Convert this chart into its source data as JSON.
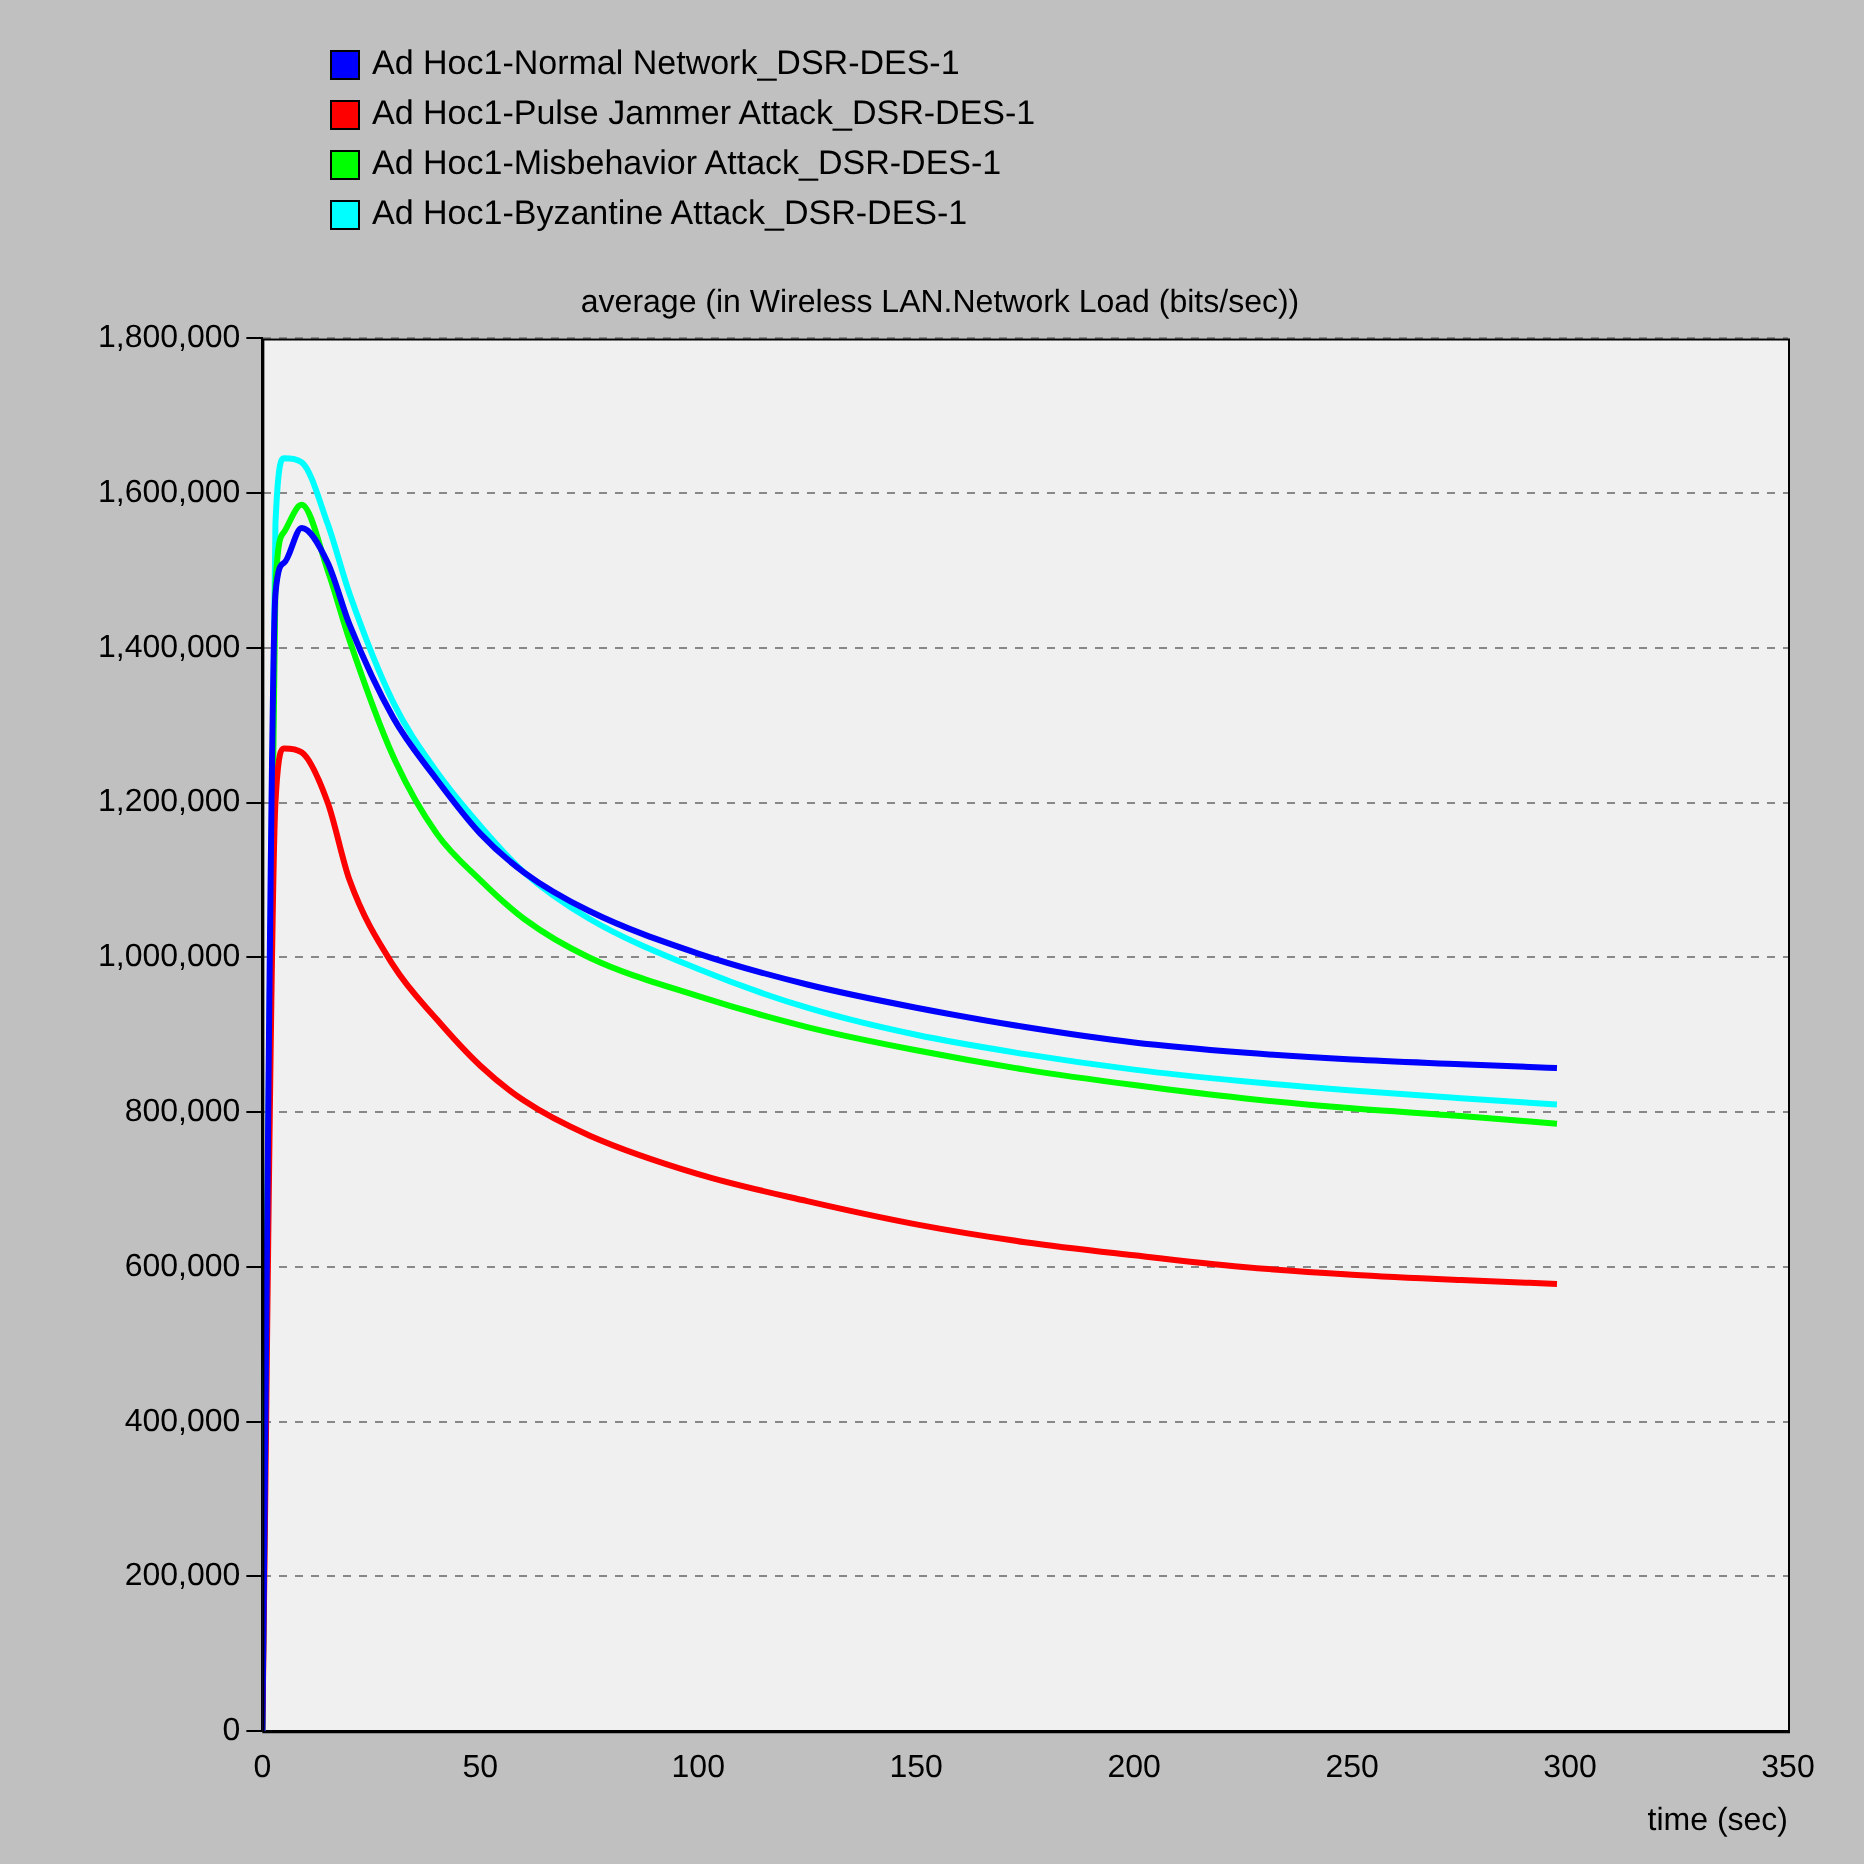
{
  "chart_data": {
    "type": "line",
    "title": "average (in Wireless LAN.Network Load (bits/sec))",
    "xlabel": "time (sec)",
    "x": [
      0,
      3,
      5,
      9,
      15,
      20,
      30,
      40,
      50,
      60,
      75,
      100,
      125,
      150,
      175,
      200,
      225,
      250,
      275,
      297
    ],
    "series": [
      {
        "name": "Ad Hoc1-Normal Network_DSR-DES-1",
        "color": "#0000ff",
        "values": [
          0,
          1470000,
          1510000,
          1555000,
          1510000,
          1430000,
          1310000,
          1230000,
          1160000,
          1110000,
          1060000,
          1005000,
          965000,
          935000,
          910000,
          890000,
          877000,
          868000,
          862000,
          857000
        ]
      },
      {
        "name": "Ad Hoc1-Pulse Jammer Attack_DSR-DES-1",
        "color": "#ff0000",
        "values": [
          0,
          1200000,
          1270000,
          1265000,
          1200000,
          1100000,
          990000,
          920000,
          860000,
          815000,
          770000,
          720000,
          685000,
          655000,
          632000,
          615000,
          600000,
          590000,
          583000,
          578000
        ]
      },
      {
        "name": "Ad Hoc1-Misbehavior Attack_DSR-DES-1",
        "color": "#00ff00",
        "values": [
          0,
          1480000,
          1550000,
          1585000,
          1500000,
          1410000,
          1260000,
          1160000,
          1100000,
          1050000,
          1000000,
          950000,
          910000,
          880000,
          855000,
          835000,
          818000,
          805000,
          795000,
          785000
        ]
      },
      {
        "name": "Ad Hoc1-Byzantine Attack_DSR-DES-1",
        "color": "#00ffff",
        "values": [
          0,
          1560000,
          1645000,
          1640000,
          1560000,
          1470000,
          1330000,
          1240000,
          1170000,
          1110000,
          1050000,
          985000,
          935000,
          900000,
          875000,
          855000,
          840000,
          828000,
          818000,
          810000
        ]
      }
    ],
    "xlim": [
      0,
      350
    ],
    "xticks": [
      0,
      50,
      100,
      150,
      200,
      250,
      300,
      350
    ],
    "ylim": [
      0,
      1800000
    ],
    "yticks": [
      0,
      {
        "value": 200000,
        "label": "200,000"
      },
      {
        "value": 400000,
        "label": "400,000"
      },
      {
        "value": 600000,
        "label": "600,000"
      },
      {
        "value": 800000,
        "label": "800,000"
      },
      {
        "value": 1000000,
        "label": "1,000,000"
      },
      {
        "value": 1200000,
        "label": "1,200,000"
      },
      {
        "value": 1400000,
        "label": "1,400,000"
      },
      {
        "value": 1600000,
        "label": "1,600,000"
      },
      {
        "value": 1800000,
        "label": "1,800,000"
      }
    ],
    "grid": "y",
    "legend": "top left"
  }
}
